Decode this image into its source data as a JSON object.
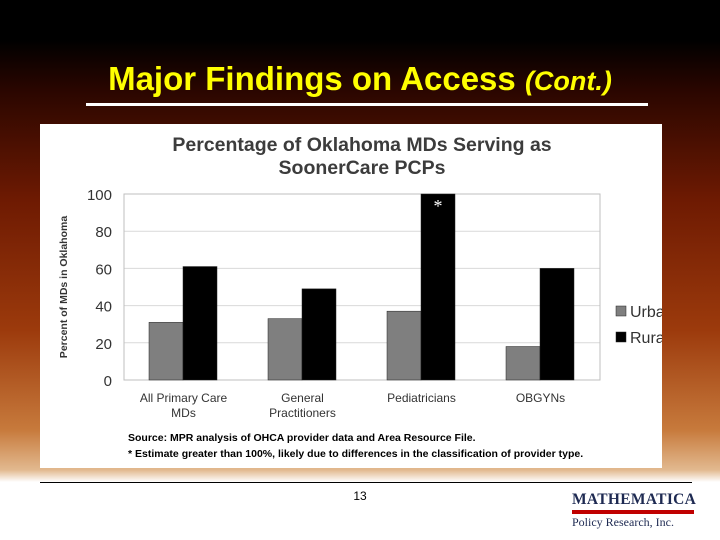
{
  "slide": {
    "title": "Major Findings on Access",
    "title_suffix": "(Cont.)",
    "page_number": "13",
    "logo_main": "MATHEMATICA",
    "logo_sub": "Policy Research, Inc."
  },
  "colors": {
    "urban": "#7f7f7f",
    "rural": "#000000",
    "title": "#ffff00",
    "logo_bar": "#c00000"
  },
  "chart_data": {
    "type": "bar",
    "title_lines": [
      "Percentage of Oklahoma MDs Serving as",
      "SoonerCare PCPs"
    ],
    "ylabel": "Percent of MDs in Oklahoma",
    "xlabel": "",
    "ylim": [
      0,
      100
    ],
    "yticks": [
      "0",
      "20",
      "40",
      "60",
      "80",
      "100"
    ],
    "grid": true,
    "legend_position": "right",
    "categories": [
      [
        "All Primary Care",
        "MDs"
      ],
      [
        "General",
        "Practitioners"
      ],
      [
        "Pediatricians"
      ],
      [
        "OBGYNs"
      ]
    ],
    "series": [
      {
        "name": "Urban",
        "values": [
          31,
          33,
          37,
          18
        ]
      },
      {
        "name": "Rural",
        "values": [
          61,
          49,
          100,
          60
        ]
      }
    ],
    "annotations": [
      {
        "category_index": 2,
        "series": "Rural",
        "text": "*"
      }
    ],
    "notes": [
      "Source: MPR analysis of OHCA provider data and Area Resource File.",
      "* Estimate greater than 100%, likely due to differences in the classification of provider type."
    ]
  }
}
